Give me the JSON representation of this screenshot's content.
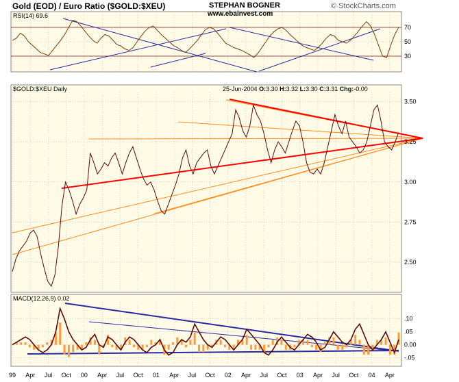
{
  "header": {
    "title": "Gold (EOD) / Euro Ratio ($GOLD:$XEU)",
    "author": "STEPHAN BOGNER",
    "website": "www.ebainvest.com",
    "credit": "© StockCharts.com"
  },
  "colors": {
    "panel_bg": "#fffbe6",
    "price_line": "#5a0a0a",
    "rsi_line": "#7a3a0a",
    "trend_red": "#ff0000",
    "trend_orange": "#ff8c1a",
    "trend_blue": "#2828a0",
    "macd_hist": "#ff9a3c",
    "grid": "#b0b0b0"
  },
  "chart_data": [
    {
      "type": "line",
      "panel": "rsi",
      "label": "RSI(14) 69.6",
      "last_value": 69.6,
      "ylim": [
        10,
        90
      ],
      "y_ticks": [
        70,
        50,
        30
      ],
      "reference_lines": [
        70,
        30
      ],
      "series": [
        {
          "values": [
            52,
            55,
            62,
            58,
            50,
            45,
            40,
            35,
            33,
            31,
            38,
            45,
            52,
            60,
            70,
            80,
            78,
            72,
            65,
            58,
            52,
            48,
            55,
            60,
            58,
            52,
            46,
            44,
            40,
            38,
            42,
            50,
            58,
            65,
            70,
            72,
            66,
            60,
            55,
            50,
            45,
            42,
            38,
            35,
            40,
            46,
            52,
            60,
            67,
            70,
            68,
            62,
            55,
            48,
            45,
            42,
            40,
            38,
            35,
            32,
            28,
            34,
            42,
            50,
            58,
            64,
            68,
            70,
            66,
            60,
            55,
            50,
            45,
            42,
            40,
            38,
            42,
            48,
            55,
            60,
            58,
            52,
            50,
            48,
            52,
            58,
            65,
            72,
            78,
            72,
            60,
            45,
            30,
            28,
            45,
            60,
            70
          ]
        }
      ]
    },
    {
      "type": "line",
      "panel": "price",
      "label": "$GOLD:$XEU Daily",
      "quote": {
        "date": "25-Jun-2004",
        "open": "3.30",
        "high": "3.32",
        "low": "3.30",
        "close": "3.31",
        "chg": "-0.00"
      },
      "ylim": [
        2.32,
        3.55
      ],
      "y_ticks": [
        3.5,
        3.25,
        3.0,
        2.75,
        2.5
      ],
      "x_labels": [
        "99",
        "Apr",
        "Jul",
        "Oct",
        "00",
        "Apr",
        "Jul",
        "Oct",
        "01",
        "Apr",
        "Jul",
        "Oct",
        "02",
        "Apr",
        "Jul",
        "Oct",
        "03",
        "Apr",
        "Jul",
        "Oct",
        "04",
        "Apr"
      ],
      "series": [
        {
          "values": [
            2.44,
            2.52,
            2.57,
            2.6,
            2.63,
            2.68,
            2.7,
            2.66,
            2.55,
            2.46,
            2.38,
            2.35,
            2.42,
            2.6,
            2.85,
            3.0,
            2.95,
            2.88,
            2.8,
            2.86,
            2.9,
            2.95,
            3.18,
            3.12,
            3.05,
            3.08,
            3.12,
            3.1,
            3.15,
            3.18,
            3.12,
            3.05,
            3.12,
            3.18,
            3.22,
            3.15,
            3.08,
            3.02,
            2.98,
            3.0,
            2.95,
            2.88,
            2.82,
            2.8,
            2.86,
            2.92,
            2.98,
            3.05,
            3.15,
            3.2,
            3.1,
            3.05,
            3.12,
            3.15,
            3.18,
            3.2,
            3.1,
            3.05,
            3.1,
            3.15,
            3.2,
            3.25,
            3.3,
            3.45,
            3.4,
            3.32,
            3.28,
            3.35,
            3.48,
            3.42,
            3.38,
            3.3,
            3.2,
            3.12,
            3.2,
            3.25,
            3.22,
            3.18,
            3.25,
            3.32,
            3.38,
            3.35,
            3.25,
            3.12,
            3.06,
            3.05,
            3.08,
            3.05,
            3.12,
            3.22,
            3.32,
            3.42,
            3.35,
            3.3,
            3.38,
            3.28,
            3.25,
            3.22,
            3.18,
            3.2,
            3.25,
            3.35,
            3.45,
            3.48,
            3.38,
            3.25,
            3.22,
            3.2,
            3.25,
            3.31
          ]
        }
      ]
    },
    {
      "type": "line",
      "panel": "macd",
      "label": "MACD(12,26,9) 0.02",
      "last_value": 0.02,
      "ylim": [
        -0.075,
        0.16
      ],
      "y_ticks": [
        0.1,
        0.05,
        0.0,
        -0.05
      ],
      "series": [
        {
          "values": [
            0.0,
            0.01,
            0.02,
            0.03,
            0.02,
            0.0,
            -0.02,
            -0.03,
            -0.02,
            0.0,
            0.05,
            0.14,
            0.1,
            0.05,
            0.02,
            0.0,
            -0.02,
            -0.01,
            0.02,
            0.04,
            0.0,
            -0.01,
            0.03,
            0.02,
            0.0,
            -0.02,
            0.01,
            0.03,
            0.02,
            0.0,
            -0.02,
            -0.03,
            -0.01,
            0.0,
            0.02,
            -0.02,
            -0.04,
            -0.03,
            0.0,
            0.02,
            0.01,
            0.03,
            0.08,
            0.05,
            0.02,
            0.0,
            -0.01,
            0.01,
            0.03,
            0.02,
            0.0,
            -0.02,
            0.0,
            0.02,
            0.06,
            0.04,
            0.02,
            0.0,
            -0.03,
            -0.04,
            -0.02,
            0.01,
            0.03,
            0.01,
            -0.01,
            -0.02,
            0.0,
            0.02,
            0.04,
            0.03,
            0.01,
            -0.02,
            -0.01,
            0.02,
            0.05,
            0.03,
            0.01,
            0.0,
            0.02,
            0.06,
            0.08,
            0.04,
            0.0,
            -0.02,
            0.0,
            0.02,
            0.05,
            0.01,
            -0.03,
            0.02
          ]
        }
      ]
    }
  ]
}
